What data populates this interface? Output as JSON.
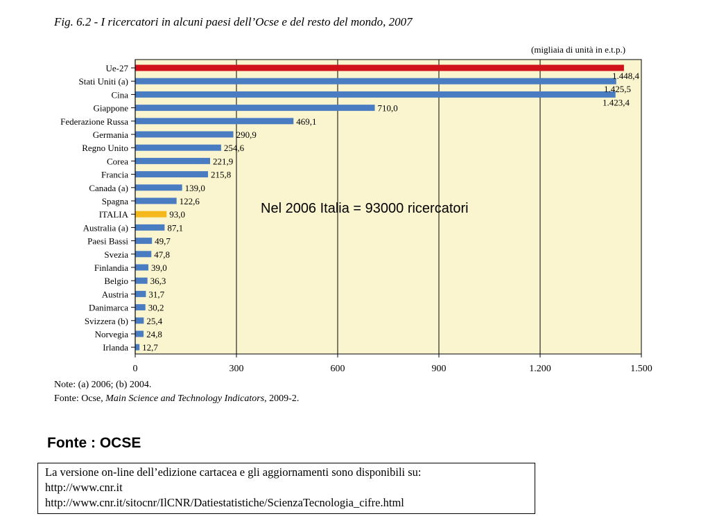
{
  "figure": {
    "title": "Fig. 6.2 - I ricercatori in alcuni paesi dell’Ocse e del resto del mondo, 2007",
    "unit_label": "(migliaia di unità in e.t.p.)"
  },
  "chart_data": {
    "type": "bar",
    "orientation": "horizontal",
    "categories": [
      "Ue-27",
      "Stati Uniti (a)",
      "Cina",
      "Giappone",
      "Federazione Russa",
      "Germania",
      "Regno Unito",
      "Corea",
      "Francia",
      "Canada (a)",
      "Spagna",
      "ITALIA",
      "Australia (a)",
      "Paesi Bassi",
      "Svezia",
      "Finlandia",
      "Belgio",
      "Austria",
      "Danimarca",
      "Svizzera (b)",
      "Norvegia",
      "Irlanda"
    ],
    "values": [
      1448.4,
      1425.5,
      1423.4,
      710.0,
      469.1,
      290.9,
      254.6,
      221.9,
      215.8,
      139.0,
      122.6,
      93.0,
      87.1,
      49.7,
      47.8,
      39.0,
      36.3,
      31.7,
      30.2,
      25.4,
      24.8,
      12.7
    ],
    "value_labels": [
      "1.448,4",
      "1.425,5",
      "1.423,4",
      "710,0",
      "469,1",
      "290,9",
      "254,6",
      "221,9",
      "215,8",
      "139,0",
      "122,6",
      "93,0",
      "87,1",
      "49,7",
      "47,8",
      "39,0",
      "36,3",
      "31,7",
      "30,2",
      "25,4",
      "24,8",
      "12,7"
    ],
    "highlight": {
      "Ue-27": "#d0121b",
      "ITALIA": "#f5b81c"
    },
    "default_color": "#4a7cc2",
    "background_color": "#fbf5cf",
    "xlim": [
      0,
      1500
    ],
    "x_ticks": [
      0,
      300,
      600,
      900,
      1200,
      1500
    ],
    "x_tick_labels": [
      "0",
      "300",
      "600",
      "900",
      "1.200",
      "1.500"
    ],
    "grid": "vertical",
    "annotation": "Nel 2006 Italia = 93000 ricercatori"
  },
  "notes": {
    "note_line": "Note: (a) 2006; (b) 2004.",
    "source_prefix": "Fonte: Ocse, ",
    "source_title": "Main Science and Technology Indicators",
    "source_suffix": ", 2009-2."
  },
  "source_heading": "Fonte : OCSE",
  "online_box": {
    "line1": "La versione on-line dell’edizione cartacea e gli aggiornamenti sono disponibili su:",
    "line2": "http://www.cnr.it",
    "line3": "http://www.cnr.it/sitocnr/IlCNR/Datiestatistiche/ScienzaTecnologia_cifre.html"
  }
}
